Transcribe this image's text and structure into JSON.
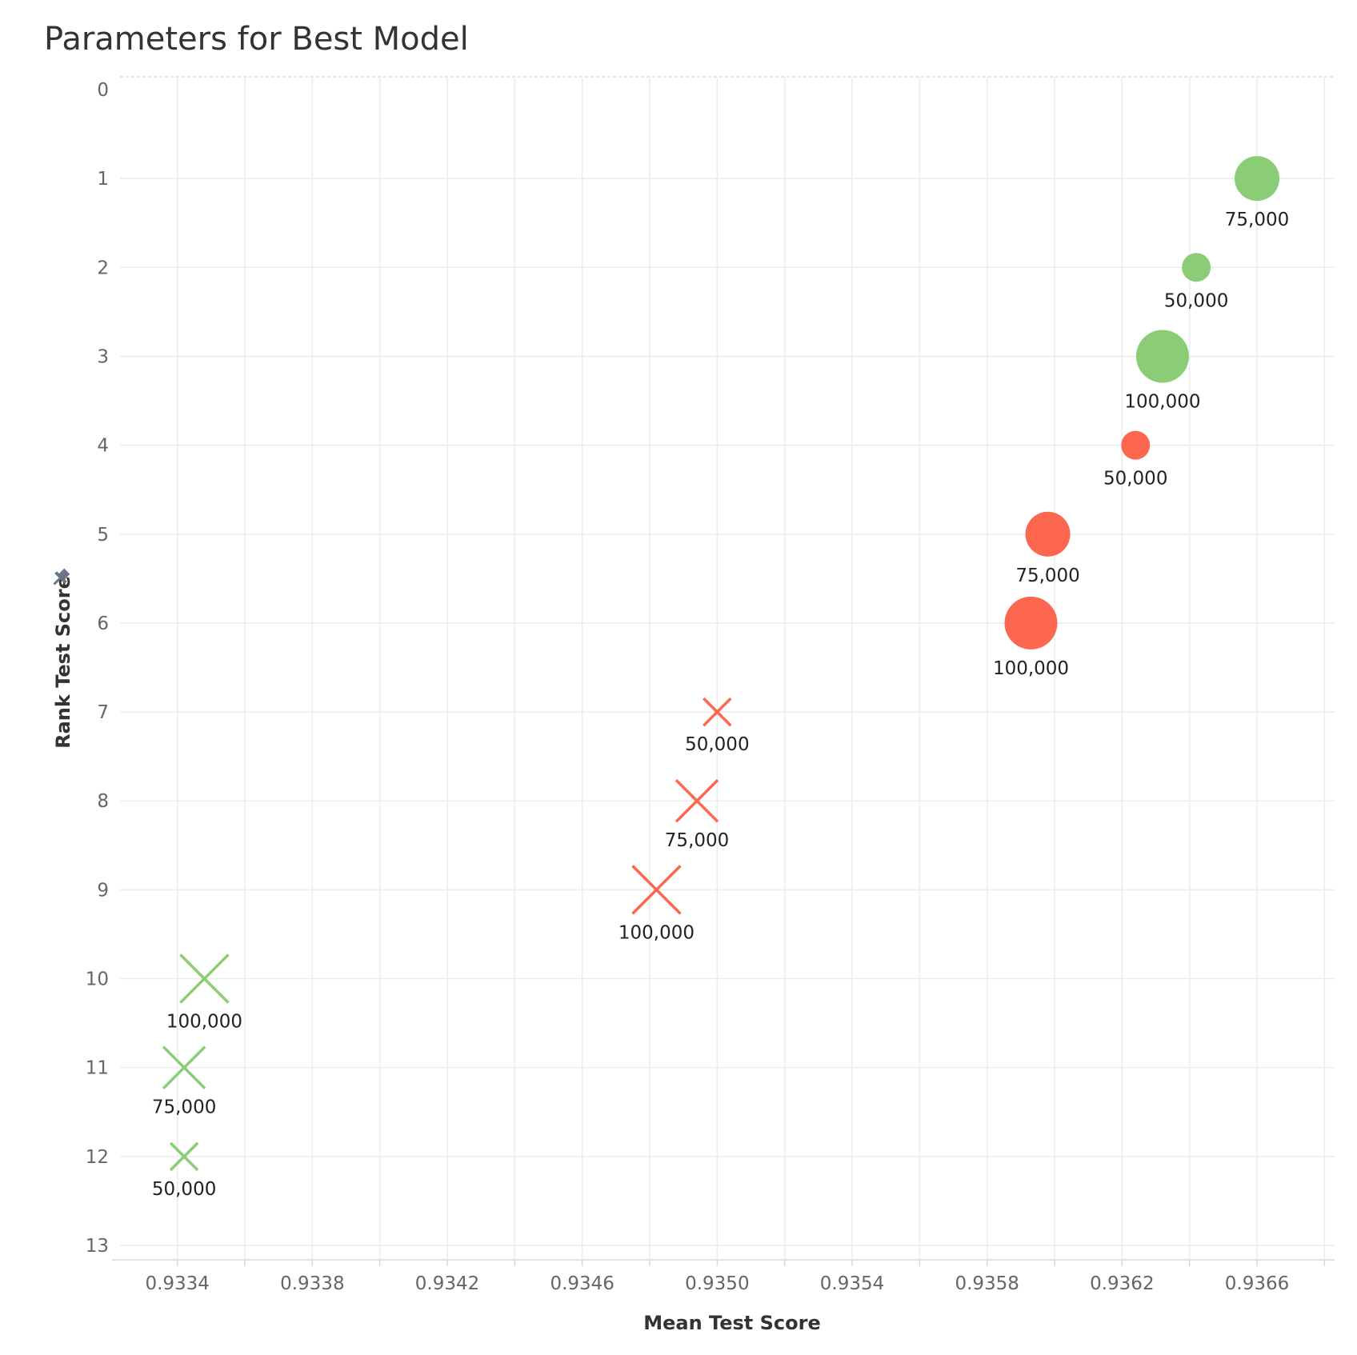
{
  "chart_data": {
    "type": "scatter",
    "title": "Parameters for Best Model",
    "xlabel": "Mean Test Score",
    "ylabel": "Rank Test Score",
    "xlim": [
      0.93323,
      0.93683
    ],
    "ylim": [
      0,
      13
    ],
    "y_reversed": true,
    "grid": true,
    "legend": "none",
    "x_ticks": [
      "0.9334",
      "0.9338",
      "0.9342",
      "0.9346",
      "0.9350",
      "0.9354",
      "0.9358",
      "0.9362",
      "0.9366"
    ],
    "x_tick_values": [
      0.9334,
      0.9338,
      0.9342,
      0.9346,
      0.935,
      0.9354,
      0.9358,
      0.9362,
      0.9366
    ],
    "y_ticks": [
      "0",
      "1",
      "2",
      "3",
      "4",
      "5",
      "6",
      "7",
      "8",
      "9",
      "10",
      "11",
      "12",
      "13"
    ],
    "y_tick_values": [
      0,
      1,
      2,
      3,
      4,
      5,
      6,
      7,
      8,
      9,
      10,
      11,
      12,
      13
    ],
    "colors": {
      "green": "#8bcd76",
      "red": "#fe674f"
    },
    "points": [
      {
        "x": 0.9366,
        "y": 1,
        "size": 75000,
        "shape": "circle",
        "color": "green",
        "label": "75,000"
      },
      {
        "x": 0.93642,
        "y": 2,
        "size": 50000,
        "shape": "circle",
        "color": "green",
        "label": "50,000"
      },
      {
        "x": 0.93632,
        "y": 3,
        "size": 100000,
        "shape": "circle",
        "color": "green",
        "label": "100,000"
      },
      {
        "x": 0.93624,
        "y": 4,
        "size": 50000,
        "shape": "circle",
        "color": "red",
        "label": "50,000"
      },
      {
        "x": 0.93598,
        "y": 5,
        "size": 75000,
        "shape": "circle",
        "color": "red",
        "label": "75,000"
      },
      {
        "x": 0.93593,
        "y": 6,
        "size": 100000,
        "shape": "circle",
        "color": "red",
        "label": "100,000"
      },
      {
        "x": 0.935,
        "y": 7,
        "size": 50000,
        "shape": "x",
        "color": "red",
        "label": "50,000"
      },
      {
        "x": 0.93494,
        "y": 8,
        "size": 75000,
        "shape": "x",
        "color": "red",
        "label": "75,000"
      },
      {
        "x": 0.93482,
        "y": 9,
        "size": 100000,
        "shape": "x",
        "color": "red",
        "label": "100,000"
      },
      {
        "x": 0.93348,
        "y": 10,
        "size": 100000,
        "shape": "x",
        "color": "green",
        "label": "100,000"
      },
      {
        "x": 0.93342,
        "y": 11,
        "size": 75000,
        "shape": "x",
        "color": "green",
        "label": "75,000"
      },
      {
        "x": 0.93342,
        "y": 12,
        "size": 50000,
        "shape": "x",
        "color": "green",
        "label": "50,000"
      }
    ]
  }
}
